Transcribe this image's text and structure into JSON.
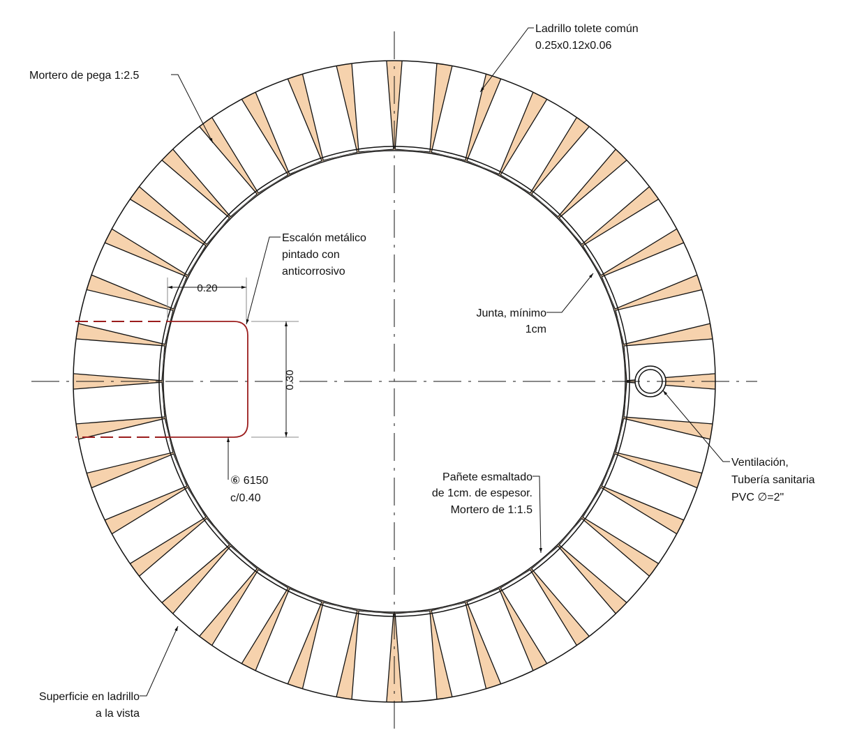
{
  "labels": {
    "ladrillo": [
      "Ladrillo tolete común",
      "0.25x0.12x0.06"
    ],
    "mortero_pega": [
      "Mortero de pega 1:2.5"
    ],
    "escalon": [
      "Escalón metálico",
      "pintado con",
      "anticorrosivo"
    ],
    "dim_width": "0.20",
    "dim_height": "0.30",
    "junta": [
      "Junta, mínimo",
      "1cm"
    ],
    "ventilacion": [
      "Ventilación,",
      "Tubería sanitaria",
      "PVC ∅=2\""
    ],
    "varilla": [
      "⑥ 6150",
      "c/0.40"
    ],
    "panete": [
      "Pañete esmaltado",
      "de 1cm. de espesor.",
      "Mortero de 1:1.5"
    ],
    "superficie": [
      "Superficie en ladrillo",
      "a la vista"
    ]
  }
}
